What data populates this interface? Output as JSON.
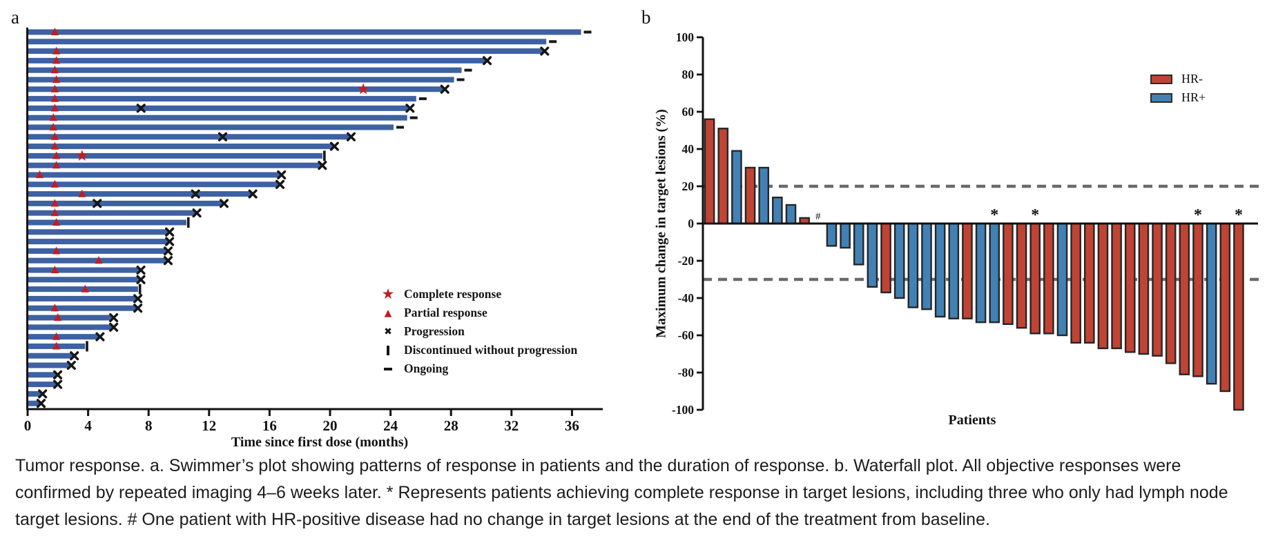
{
  "caption": "Tumor response. a. Swimmer’s plot showing patterns of response in patients and the duration of response. b. Waterfall plot. All objective responses were confirmed by repeated imaging 4–6 weeks later. * Represents patients achieving complete response in target lesions, including three who only had lymph node target lesions. # One patient with HR-positive disease had no change in target lesions at the end of the treatment from baseline.",
  "chart_data": [
    {
      "id": "swimmer",
      "type": "bar",
      "title": "a",
      "xlabel": "Time since first dose (months)",
      "x_ticks": [
        0,
        4,
        8,
        12,
        16,
        20,
        24,
        28,
        32,
        36
      ],
      "xlim": [
        0,
        38
      ],
      "bar_color": "#3d61a2",
      "marker_color": "#c21d20",
      "legend": [
        {
          "marker": "star",
          "label": "Complete response"
        },
        {
          "marker": "triangle",
          "label": "Partial response"
        },
        {
          "marker": "x",
          "label": "Progression"
        },
        {
          "marker": "vbar",
          "label": "Discontinued without progression"
        },
        {
          "marker": "dash",
          "label": "Ongoing"
        }
      ],
      "patients": [
        {
          "duration": 36.6,
          "end": "ongoing",
          "partial_response_month": 1.8,
          "complete_response_month": null,
          "progression_events": []
        },
        {
          "duration": 34.3,
          "end": "ongoing",
          "partial_response_month": null,
          "complete_response_month": null,
          "progression_events": []
        },
        {
          "duration": 34.1,
          "end": "progression",
          "partial_response_month": 1.9,
          "complete_response_month": null,
          "progression_events": []
        },
        {
          "duration": 30.3,
          "end": "progression",
          "partial_response_month": 1.9,
          "complete_response_month": null,
          "progression_events": []
        },
        {
          "duration": 28.7,
          "end": "ongoing",
          "partial_response_month": 1.8,
          "complete_response_month": null,
          "progression_events": []
        },
        {
          "duration": 28.2,
          "end": "ongoing",
          "partial_response_month": 1.9,
          "complete_response_month": null,
          "progression_events": []
        },
        {
          "duration": 27.5,
          "end": "progression",
          "partial_response_month": 1.8,
          "complete_response_month": 22.2,
          "progression_events": []
        },
        {
          "duration": 25.7,
          "end": "ongoing",
          "partial_response_month": 1.8,
          "complete_response_month": null,
          "progression_events": []
        },
        {
          "duration": 25.2,
          "end": "progression",
          "partial_response_month": 1.8,
          "complete_response_month": null,
          "progression_events": [
            7.5
          ]
        },
        {
          "duration": 25.1,
          "end": "ongoing",
          "partial_response_month": 1.7,
          "complete_response_month": null,
          "progression_events": []
        },
        {
          "duration": 24.2,
          "end": "ongoing",
          "partial_response_month": 1.7,
          "complete_response_month": null,
          "progression_events": []
        },
        {
          "duration": 21.3,
          "end": "progression",
          "partial_response_month": 1.8,
          "complete_response_month": null,
          "progression_events": [
            12.9
          ]
        },
        {
          "duration": 20.2,
          "end": "progression",
          "partial_response_month": 1.8,
          "complete_response_month": null,
          "progression_events": []
        },
        {
          "duration": 19.5,
          "end": "discontinued",
          "partial_response_month": 1.9,
          "complete_response_month": 3.6,
          "progression_events": []
        },
        {
          "duration": 19.4,
          "end": "progression",
          "partial_response_month": 1.9,
          "complete_response_month": null,
          "progression_events": []
        },
        {
          "duration": 16.7,
          "end": "progression",
          "partial_response_month": 0.8,
          "complete_response_month": null,
          "progression_events": []
        },
        {
          "duration": 16.6,
          "end": "progression",
          "partial_response_month": 1.8,
          "complete_response_month": null,
          "progression_events": []
        },
        {
          "duration": 14.8,
          "end": "progression",
          "partial_response_month": 3.6,
          "complete_response_month": null,
          "progression_events": [
            11.1
          ]
        },
        {
          "duration": 12.9,
          "end": "progression",
          "partial_response_month": 1.8,
          "complete_response_month": null,
          "progression_events": [
            4.6
          ]
        },
        {
          "duration": 11.1,
          "end": "progression",
          "partial_response_month": 1.8,
          "complete_response_month": null,
          "progression_events": []
        },
        {
          "duration": 10.5,
          "end": "discontinued",
          "partial_response_month": 1.9,
          "complete_response_month": null,
          "progression_events": []
        },
        {
          "duration": 9.3,
          "end": "progression",
          "partial_response_month": null,
          "complete_response_month": null,
          "progression_events": []
        },
        {
          "duration": 9.3,
          "end": "progression",
          "partial_response_month": null,
          "complete_response_month": null,
          "progression_events": []
        },
        {
          "duration": 9.2,
          "end": "progression",
          "partial_response_month": 1.9,
          "complete_response_month": null,
          "progression_events": []
        },
        {
          "duration": 9.2,
          "end": "progression",
          "partial_response_month": 4.7,
          "complete_response_month": null,
          "progression_events": []
        },
        {
          "duration": 7.4,
          "end": "progression",
          "partial_response_month": 1.8,
          "complete_response_month": null,
          "progression_events": []
        },
        {
          "duration": 7.4,
          "end": "progression",
          "partial_response_month": null,
          "complete_response_month": null,
          "progression_events": []
        },
        {
          "duration": 7.3,
          "end": "discontinued",
          "partial_response_month": 3.8,
          "complete_response_month": null,
          "progression_events": []
        },
        {
          "duration": 7.2,
          "end": "progression",
          "partial_response_month": null,
          "complete_response_month": null,
          "progression_events": []
        },
        {
          "duration": 7.2,
          "end": "progression",
          "partial_response_month": 1.8,
          "complete_response_month": null,
          "progression_events": []
        },
        {
          "duration": 5.6,
          "end": "progression",
          "partial_response_month": 2.0,
          "complete_response_month": null,
          "progression_events": []
        },
        {
          "duration": 5.6,
          "end": "progression",
          "partial_response_month": null,
          "complete_response_month": null,
          "progression_events": []
        },
        {
          "duration": 4.7,
          "end": "progression",
          "partial_response_month": 1.9,
          "complete_response_month": null,
          "progression_events": []
        },
        {
          "duration": 3.8,
          "end": "discontinued",
          "partial_response_month": 1.9,
          "complete_response_month": null,
          "progression_events": []
        },
        {
          "duration": 3.0,
          "end": "progression",
          "partial_response_month": null,
          "complete_response_month": null,
          "progression_events": []
        },
        {
          "duration": 2.8,
          "end": "progression",
          "partial_response_month": null,
          "complete_response_month": null,
          "progression_events": []
        },
        {
          "duration": 1.9,
          "end": "progression",
          "partial_response_month": null,
          "complete_response_month": null,
          "progression_events": []
        },
        {
          "duration": 1.9,
          "end": "progression",
          "partial_response_month": null,
          "complete_response_month": null,
          "progression_events": []
        },
        {
          "duration": 0.9,
          "end": "progression",
          "partial_response_month": null,
          "complete_response_month": null,
          "progression_events": []
        },
        {
          "duration": 0.8,
          "end": "progression",
          "partial_response_month": null,
          "complete_response_month": null,
          "progression_events": []
        }
      ]
    },
    {
      "id": "waterfall",
      "type": "bar",
      "title": "b",
      "xlabel": "Patients",
      "ylabel": "Maximum change in target lesions (%)",
      "ylim": [
        -100,
        100
      ],
      "y_ticks": [
        100,
        80,
        60,
        40,
        20,
        0,
        -20,
        -40,
        -60,
        -80,
        -100
      ],
      "reference_lines": [
        20,
        -30
      ],
      "reference_line_color": "#6a6a6a",
      "legend": [
        {
          "label": "HR-",
          "color": "#c14334"
        },
        {
          "label": "HR+",
          "color": "#4181b5"
        }
      ],
      "values": [
        {
          "change": 56,
          "hr": "HR-",
          "annotation": null
        },
        {
          "change": 51,
          "hr": "HR-",
          "annotation": null
        },
        {
          "change": 39,
          "hr": "HR+",
          "annotation": null
        },
        {
          "change": 30,
          "hr": "HR-",
          "annotation": null
        },
        {
          "change": 30,
          "hr": "HR+",
          "annotation": null
        },
        {
          "change": 14,
          "hr": "HR+",
          "annotation": null
        },
        {
          "change": 10,
          "hr": "HR+",
          "annotation": null
        },
        {
          "change": 3,
          "hr": "HR-",
          "annotation": null
        },
        {
          "change": 0,
          "hr": "HR+",
          "annotation": "#"
        },
        {
          "change": -12,
          "hr": "HR+",
          "annotation": null
        },
        {
          "change": -13,
          "hr": "HR+",
          "annotation": null
        },
        {
          "change": -22,
          "hr": "HR+",
          "annotation": null
        },
        {
          "change": -34,
          "hr": "HR+",
          "annotation": null
        },
        {
          "change": -37,
          "hr": "HR-",
          "annotation": null
        },
        {
          "change": -40,
          "hr": "HR+",
          "annotation": null
        },
        {
          "change": -45,
          "hr": "HR+",
          "annotation": null
        },
        {
          "change": -46,
          "hr": "HR+",
          "annotation": null
        },
        {
          "change": -50,
          "hr": "HR+",
          "annotation": null
        },
        {
          "change": -51,
          "hr": "HR+",
          "annotation": null
        },
        {
          "change": -51,
          "hr": "HR-",
          "annotation": null
        },
        {
          "change": -53,
          "hr": "HR+",
          "annotation": null
        },
        {
          "change": -53,
          "hr": "HR+",
          "annotation": "*"
        },
        {
          "change": -54,
          "hr": "HR-",
          "annotation": null
        },
        {
          "change": -56,
          "hr": "HR-",
          "annotation": null
        },
        {
          "change": -59,
          "hr": "HR-",
          "annotation": "*"
        },
        {
          "change": -59,
          "hr": "HR-",
          "annotation": null
        },
        {
          "change": -60,
          "hr": "HR+",
          "annotation": null
        },
        {
          "change": -64,
          "hr": "HR-",
          "annotation": null
        },
        {
          "change": -64,
          "hr": "HR-",
          "annotation": null
        },
        {
          "change": -67,
          "hr": "HR-",
          "annotation": null
        },
        {
          "change": -67,
          "hr": "HR-",
          "annotation": null
        },
        {
          "change": -69,
          "hr": "HR-",
          "annotation": null
        },
        {
          "change": -70,
          "hr": "HR-",
          "annotation": null
        },
        {
          "change": -71,
          "hr": "HR-",
          "annotation": null
        },
        {
          "change": -75,
          "hr": "HR-",
          "annotation": null
        },
        {
          "change": -81,
          "hr": "HR-",
          "annotation": null
        },
        {
          "change": -82,
          "hr": "HR-",
          "annotation": "*"
        },
        {
          "change": -86,
          "hr": "HR+",
          "annotation": null
        },
        {
          "change": -90,
          "hr": "HR-",
          "annotation": null
        },
        {
          "change": -100,
          "hr": "HR-",
          "annotation": "*"
        }
      ]
    }
  ]
}
